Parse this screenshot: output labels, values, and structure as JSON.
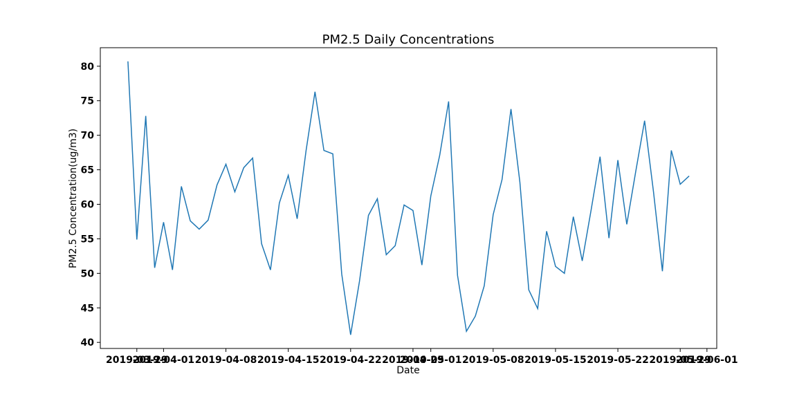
{
  "chart_data": {
    "type": "line",
    "title": "PM2.5 Daily Concentrations",
    "x_label": "Date",
    "y_label": "PM2.5 Concentration(ug/m3)",
    "x": [
      "2019-03-28",
      "2019-03-29",
      "2019-03-30",
      "2019-03-31",
      "2019-04-01",
      "2019-04-02",
      "2019-04-03",
      "2019-04-04",
      "2019-04-05",
      "2019-04-06",
      "2019-04-07",
      "2019-04-08",
      "2019-04-09",
      "2019-04-10",
      "2019-04-11",
      "2019-04-12",
      "2019-04-13",
      "2019-04-14",
      "2019-04-15",
      "2019-04-16",
      "2019-04-17",
      "2019-04-18",
      "2019-04-19",
      "2019-04-20",
      "2019-04-21",
      "2019-04-22",
      "2019-04-23",
      "2019-04-24",
      "2019-04-25",
      "2019-04-26",
      "2019-04-27",
      "2019-04-28",
      "2019-04-29",
      "2019-04-30",
      "2019-05-01",
      "2019-05-02",
      "2019-05-03",
      "2019-05-04",
      "2019-05-05",
      "2019-05-06",
      "2019-05-07",
      "2019-05-08",
      "2019-05-09",
      "2019-05-10",
      "2019-05-11",
      "2019-05-12",
      "2019-05-13",
      "2019-05-14",
      "2019-05-15",
      "2019-05-16",
      "2019-05-17",
      "2019-05-18",
      "2019-05-19",
      "2019-05-20",
      "2019-05-21",
      "2019-05-22",
      "2019-05-23",
      "2019-05-24",
      "2019-05-25",
      "2019-05-26",
      "2019-05-27",
      "2019-05-28",
      "2019-05-29",
      "2019-05-30"
    ],
    "series": [
      {
        "name": "PM2.5",
        "color": "#1f77b4",
        "values": [
          80.7,
          54.9,
          72.8,
          50.8,
          57.4,
          50.5,
          62.6,
          57.6,
          56.4,
          57.7,
          62.8,
          65.8,
          61.8,
          65.3,
          66.7,
          54.3,
          50.5,
          60.2,
          64.2,
          57.9,
          67.8,
          76.3,
          67.8,
          67.3,
          49.9,
          41.1,
          48.9,
          58.4,
          60.8,
          52.7,
          54.0,
          59.9,
          59.1,
          51.2,
          61.2,
          67.1,
          74.9,
          49.7,
          41.6,
          43.8,
          48.2,
          58.5,
          63.6,
          73.8,
          63.2,
          47.6,
          44.9,
          56.1,
          51.0,
          50.0,
          58.2,
          51.8,
          59.2,
          66.9,
          55.1,
          66.4,
          57.1,
          64.7,
          72.1,
          61.8,
          50.3,
          67.8,
          62.9,
          64.1
        ]
      }
    ],
    "xlim": [
      "2019-03-24T21:36",
      "2019-06-02T02:24"
    ],
    "xticks": [
      "2019-03-29",
      "2019-04-01",
      "2019-04-08",
      "2019-04-15",
      "2019-04-22",
      "2019-04-29",
      "2019-05-01",
      "2019-05-08",
      "2019-05-15",
      "2019-05-22",
      "2019-05-29",
      "2019-06-01"
    ],
    "ylim": [
      39.12,
      82.68
    ],
    "yticks": [
      40,
      45,
      50,
      55,
      60,
      65,
      70,
      75,
      80
    ]
  }
}
